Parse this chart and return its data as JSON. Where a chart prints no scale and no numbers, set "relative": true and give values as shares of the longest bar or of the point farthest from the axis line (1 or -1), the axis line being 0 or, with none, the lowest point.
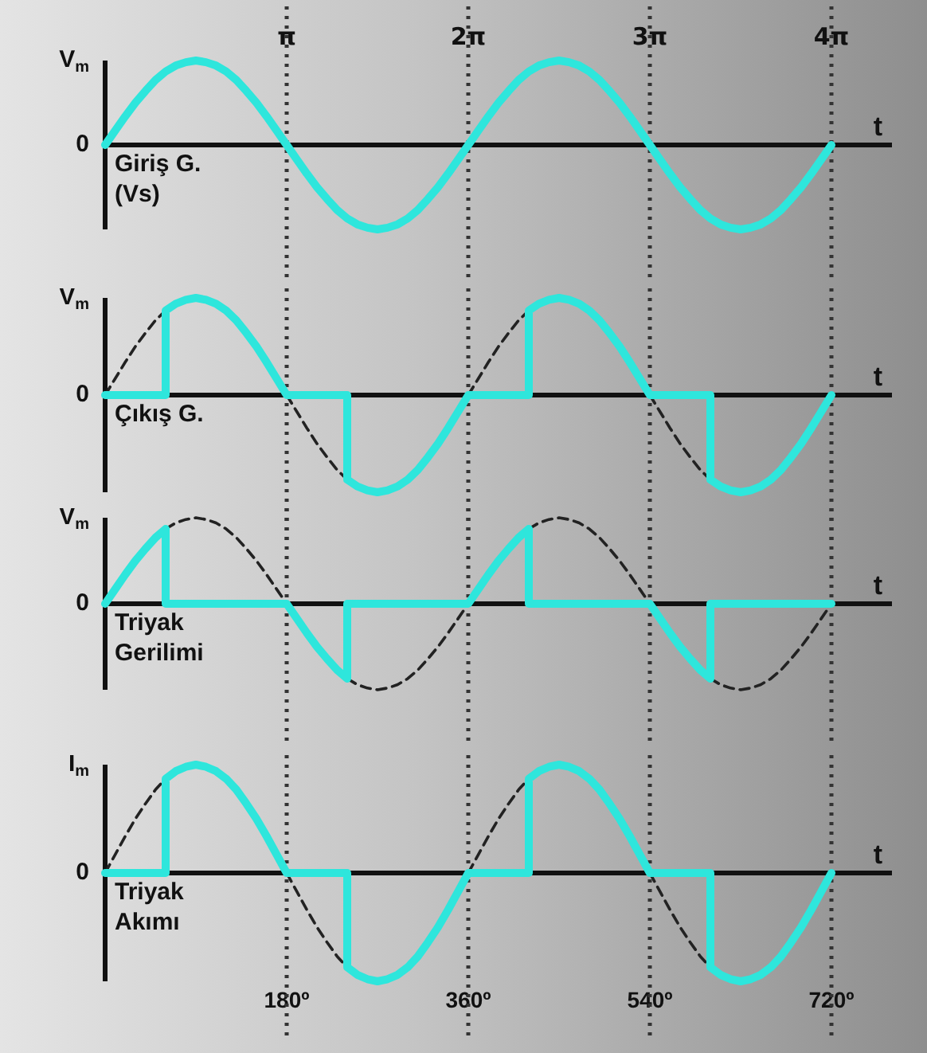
{
  "chart_data": [
    {
      "type": "line",
      "ylabel": "Giriş G.\n(Vs)",
      "xlabel": "t",
      "xlim": [
        0,
        780
      ],
      "relative": true,
      "annotations": [
        "V$_{m}$",
        "0",
        {
          "text": "π",
          "x": 180
        },
        {
          "text": "2π",
          "x": 360
        },
        {
          "text": "3π",
          "x": 540
        },
        {
          "text": "4π",
          "x": 720
        }
      ],
      "marker": "none",
      "legend": false,
      "grid": false,
      "ref_lines": [
        {
          "axis": "x",
          "value": 180,
          "line_style": "dotted",
          "color": "#333333"
        },
        {
          "axis": "x",
          "value": 360,
          "line_style": "dotted",
          "color": "#333333"
        },
        {
          "axis": "x",
          "value": 540,
          "line_style": "dotted",
          "color": "#333333"
        },
        {
          "axis": "x",
          "value": 720,
          "line_style": "dotted",
          "color": "#333333"
        }
      ],
      "series": [
        {
          "color": "#2ee6dc",
          "line_style": "solid",
          "x": [
            0,
            10,
            20,
            30,
            40,
            50,
            60,
            70,
            80,
            90,
            100,
            110,
            120,
            130,
            140,
            150,
            160,
            170,
            180,
            190,
            200,
            210,
            220,
            230,
            240,
            250,
            260,
            270,
            280,
            290,
            300,
            310,
            320,
            330,
            340,
            350,
            360,
            370,
            380,
            390,
            400,
            410,
            420,
            430,
            440,
            450,
            460,
            470,
            480,
            490,
            500,
            510,
            520,
            530,
            540,
            550,
            560,
            570,
            580,
            590,
            600,
            610,
            620,
            630,
            640,
            650,
            660,
            670,
            680,
            690,
            700,
            710,
            720
          ],
          "values": [
            0,
            0.17,
            0.34,
            0.5,
            0.64,
            0.77,
            0.87,
            0.94,
            0.98,
            1,
            0.98,
            0.94,
            0.87,
            0.77,
            0.64,
            0.5,
            0.34,
            0.17,
            0,
            -0.17,
            -0.34,
            -0.5,
            -0.64,
            -0.77,
            -0.87,
            -0.94,
            -0.98,
            -1,
            -0.98,
            -0.94,
            -0.87,
            -0.77,
            -0.64,
            -0.5,
            -0.34,
            -0.17,
            0,
            0.17,
            0.34,
            0.5,
            0.64,
            0.77,
            0.87,
            0.94,
            0.98,
            1,
            0.98,
            0.94,
            0.87,
            0.77,
            0.64,
            0.5,
            0.34,
            0.17,
            0,
            -0.17,
            -0.34,
            -0.5,
            -0.64,
            -0.77,
            -0.87,
            -0.94,
            -0.98,
            -1,
            -0.98,
            -0.94,
            -0.87,
            -0.77,
            -0.64,
            -0.5,
            -0.34,
            -0.17,
            0
          ]
        }
      ]
    },
    {
      "type": "line",
      "ylabel": "Çıkış G.",
      "xlabel": "t",
      "xlim": [
        0,
        780
      ],
      "relative": true,
      "annotations": [
        "V$_{m}$",
        "0"
      ],
      "tick_labels": false,
      "marker": "none",
      "legend": false,
      "grid": false,
      "ref_lines": [
        {
          "axis": "x",
          "value": 180,
          "line_style": "dotted",
          "color": "#333333"
        },
        {
          "axis": "x",
          "value": 360,
          "line_style": "dotted",
          "color": "#333333"
        },
        {
          "axis": "x",
          "value": 540,
          "line_style": "dotted",
          "color": "#333333"
        },
        {
          "axis": "x",
          "value": 720,
          "line_style": "dotted",
          "color": "#333333"
        }
      ],
      "series": [
        {
          "color": "#222222",
          "line_style": "dashed",
          "x": [
            0,
            10,
            20,
            30,
            40,
            50,
            60,
            70,
            80,
            90,
            100,
            110,
            120,
            130,
            140,
            150,
            160,
            170,
            180,
            190,
            200,
            210,
            220,
            230,
            240,
            250,
            260,
            270,
            280,
            290,
            300,
            310,
            320,
            330,
            340,
            350,
            360,
            370,
            380,
            390,
            400,
            410,
            420,
            430,
            440,
            450,
            460,
            470,
            480,
            490,
            500,
            510,
            520,
            530,
            540,
            550,
            560,
            570,
            580,
            590,
            600
          ],
          "values": [
            0,
            0.17,
            0.34,
            0.5,
            0.64,
            0.77,
            0.87,
            null,
            null,
            null,
            null,
            null,
            null,
            null,
            null,
            null,
            null,
            null,
            0,
            -0.17,
            -0.34,
            -0.5,
            -0.64,
            -0.77,
            -0.87,
            null,
            null,
            null,
            null,
            null,
            null,
            null,
            null,
            null,
            null,
            null,
            0,
            0.17,
            0.34,
            0.5,
            0.64,
            0.77,
            0.87,
            null,
            null,
            null,
            null,
            null,
            null,
            null,
            null,
            null,
            null,
            null,
            0,
            -0.17,
            -0.34,
            -0.5,
            -0.64,
            -0.77,
            -0.87
          ]
        },
        {
          "color": "#2ee6dc",
          "line_style": "solid",
          "x": [
            0,
            60,
            60,
            70,
            80,
            90,
            100,
            110,
            120,
            130,
            140,
            150,
            160,
            170,
            180,
            240,
            240,
            250,
            260,
            270,
            280,
            290,
            300,
            310,
            320,
            330,
            340,
            350,
            360,
            420,
            420,
            430,
            440,
            450,
            460,
            470,
            480,
            490,
            500,
            510,
            520,
            530,
            540,
            600,
            600,
            610,
            620,
            630,
            640,
            650,
            660,
            670,
            680,
            690,
            700,
            710,
            720
          ],
          "values": [
            0,
            0,
            0.87,
            0.94,
            0.98,
            1,
            0.98,
            0.94,
            0.87,
            0.77,
            0.64,
            0.5,
            0.34,
            0.17,
            0,
            0,
            -0.87,
            -0.94,
            -0.98,
            -1,
            -0.98,
            -0.94,
            -0.87,
            -0.77,
            -0.64,
            -0.5,
            -0.34,
            -0.17,
            0,
            0,
            0.87,
            0.94,
            0.98,
            1,
            0.98,
            0.94,
            0.87,
            0.77,
            0.64,
            0.5,
            0.34,
            0.17,
            0,
            0,
            -0.87,
            -0.94,
            -0.98,
            -1,
            -0.98,
            -0.94,
            -0.87,
            -0.77,
            -0.64,
            -0.5,
            -0.34,
            -0.17,
            0
          ]
        }
      ]
    },
    {
      "type": "line",
      "ylabel": "Triyak\nGerilimi",
      "xlabel": "t",
      "xlim": [
        0,
        780
      ],
      "relative": true,
      "annotations": [
        "V$_{m}$",
        "0"
      ],
      "tick_labels": false,
      "marker": "none",
      "legend": false,
      "grid": false,
      "ref_lines": [
        {
          "axis": "x",
          "value": 180,
          "line_style": "dotted",
          "color": "#333333"
        },
        {
          "axis": "x",
          "value": 360,
          "line_style": "dotted",
          "color": "#333333"
        },
        {
          "axis": "x",
          "value": 540,
          "line_style": "dotted",
          "color": "#333333"
        },
        {
          "axis": "x",
          "value": 720,
          "line_style": "dotted",
          "color": "#333333"
        }
      ],
      "series": [
        {
          "color": "#222222",
          "line_style": "dashed",
          "x": [
            60,
            70,
            80,
            90,
            100,
            110,
            120,
            130,
            140,
            150,
            160,
            170,
            180,
            190,
            200,
            210,
            220,
            230,
            240,
            250,
            260,
            270,
            280,
            290,
            300,
            310,
            320,
            330,
            340,
            350,
            360,
            370,
            380,
            390,
            400,
            410,
            420,
            430,
            440,
            450,
            460,
            470,
            480,
            490,
            500,
            510,
            520,
            530,
            540,
            550,
            560,
            570,
            580,
            590,
            600,
            610,
            620,
            630,
            640,
            650,
            660,
            670,
            680,
            690,
            700,
            710,
            720
          ],
          "values": [
            0.87,
            0.94,
            0.98,
            1,
            0.98,
            0.94,
            0.87,
            0.77,
            0.64,
            0.5,
            0.34,
            0.17,
            0,
            null,
            null,
            null,
            null,
            null,
            -0.87,
            -0.94,
            -0.98,
            -1,
            -0.98,
            -0.94,
            -0.87,
            -0.77,
            -0.64,
            -0.5,
            -0.34,
            -0.17,
            0,
            null,
            null,
            null,
            null,
            null,
            0.87,
            0.94,
            0.98,
            1,
            0.98,
            0.94,
            0.87,
            0.77,
            0.64,
            0.5,
            0.34,
            0.17,
            0,
            null,
            null,
            null,
            null,
            null,
            -0.87,
            -0.94,
            -0.98,
            -1,
            -0.98,
            -0.94,
            -0.87,
            -0.77,
            -0.64,
            -0.5,
            -0.34,
            -0.17,
            0
          ]
        },
        {
          "color": "#2ee6dc",
          "line_style": "solid",
          "x": [
            0,
            10,
            20,
            30,
            40,
            50,
            60,
            60,
            180,
            190,
            200,
            210,
            220,
            230,
            240,
            240,
            360,
            370,
            380,
            390,
            400,
            410,
            420,
            420,
            540,
            550,
            560,
            570,
            580,
            590,
            600,
            600,
            720
          ],
          "values": [
            0,
            0.17,
            0.34,
            0.5,
            0.64,
            0.77,
            0.87,
            0,
            0,
            -0.17,
            -0.34,
            -0.5,
            -0.64,
            -0.77,
            -0.87,
            0,
            0,
            0.17,
            0.34,
            0.5,
            0.64,
            0.77,
            0.87,
            0,
            0,
            -0.17,
            -0.34,
            -0.5,
            -0.64,
            -0.77,
            -0.87,
            0,
            0
          ]
        }
      ]
    },
    {
      "type": "line",
      "ylabel": "Triyak\nAkımı",
      "xlabel": "t",
      "xlim": [
        0,
        780
      ],
      "xticks": [
        {
          "value": 180,
          "label": "180º"
        },
        {
          "value": 360,
          "label": "360º"
        },
        {
          "value": 540,
          "label": "540º"
        },
        {
          "value": 720,
          "label": "720º"
        }
      ],
      "relative": true,
      "annotations": [
        "I$_{m}$",
        "0"
      ],
      "tick_labels": "x",
      "marker": "none",
      "legend": false,
      "grid": false,
      "ref_lines": [
        {
          "axis": "x",
          "value": 180,
          "line_style": "dotted",
          "color": "#333333"
        },
        {
          "axis": "x",
          "value": 360,
          "line_style": "dotted",
          "color": "#333333"
        },
        {
          "axis": "x",
          "value": 540,
          "line_style": "dotted",
          "color": "#333333"
        },
        {
          "axis": "x",
          "value": 720,
          "line_style": "dotted",
          "color": "#333333"
        }
      ],
      "series": [
        {
          "color": "#222222",
          "line_style": "dashed",
          "x": [
            0,
            10,
            20,
            30,
            40,
            50,
            60,
            70,
            80,
            90,
            100,
            110,
            120,
            130,
            140,
            150,
            160,
            170,
            180,
            190,
            200,
            210,
            220,
            230,
            240,
            250,
            260,
            270,
            280,
            290,
            300,
            310,
            320,
            330,
            340,
            350,
            360,
            370,
            380,
            390,
            400,
            410,
            420,
            430,
            440,
            450,
            460,
            470,
            480,
            490,
            500,
            510,
            520,
            530,
            540,
            550,
            560,
            570,
            580,
            590,
            600
          ],
          "values": [
            0,
            0.17,
            0.34,
            0.5,
            0.64,
            0.77,
            0.87,
            null,
            null,
            null,
            null,
            null,
            null,
            null,
            null,
            null,
            null,
            null,
            0,
            -0.17,
            -0.34,
            -0.5,
            -0.64,
            -0.77,
            -0.87,
            null,
            null,
            null,
            null,
            null,
            null,
            null,
            null,
            null,
            null,
            null,
            0,
            0.17,
            0.34,
            0.5,
            0.64,
            0.77,
            0.87,
            null,
            null,
            null,
            null,
            null,
            null,
            null,
            null,
            null,
            null,
            null,
            0,
            -0.17,
            -0.34,
            -0.5,
            -0.64,
            -0.77,
            -0.87
          ]
        },
        {
          "color": "#2ee6dc",
          "line_style": "solid",
          "x": [
            0,
            60,
            60,
            70,
            80,
            90,
            100,
            110,
            120,
            130,
            140,
            150,
            160,
            170,
            180,
            240,
            240,
            250,
            260,
            270,
            280,
            290,
            300,
            310,
            320,
            330,
            340,
            350,
            360,
            420,
            420,
            430,
            440,
            450,
            460,
            470,
            480,
            490,
            500,
            510,
            520,
            530,
            540,
            600,
            600,
            610,
            620,
            630,
            640,
            650,
            660,
            670,
            680,
            690,
            700,
            710,
            720
          ],
          "values": [
            0,
            0,
            0.87,
            0.94,
            0.98,
            1,
            0.98,
            0.94,
            0.87,
            0.77,
            0.64,
            0.5,
            0.34,
            0.17,
            0,
            0,
            -0.87,
            -0.94,
            -0.98,
            -1,
            -0.98,
            -0.94,
            -0.87,
            -0.77,
            -0.64,
            -0.5,
            -0.34,
            -0.17,
            0,
            0,
            0.87,
            0.94,
            0.98,
            1,
            0.98,
            0.94,
            0.87,
            0.77,
            0.64,
            0.5,
            0.34,
            0.17,
            0,
            0,
            -0.87,
            -0.94,
            -0.98,
            -1,
            -0.98,
            -0.94,
            -0.87,
            -0.77,
            -0.64,
            -0.5,
            -0.34,
            -0.17,
            0
          ]
        }
      ]
    }
  ]
}
